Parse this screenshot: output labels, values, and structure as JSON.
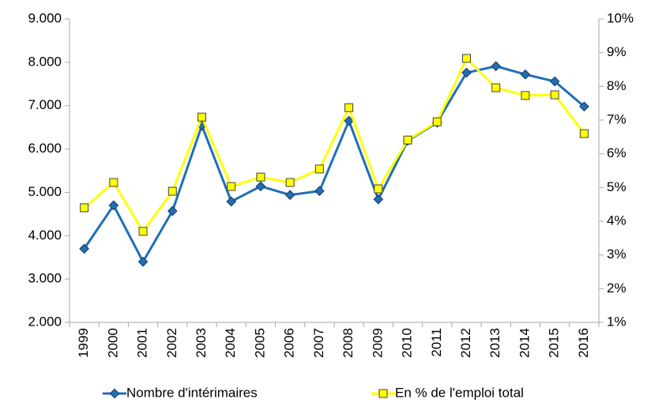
{
  "chart_data": {
    "type": "line",
    "categories": [
      "1999",
      "2000",
      "2001",
      "2002",
      "2003",
      "2004",
      "2005",
      "2006",
      "2007",
      "2008",
      "2009",
      "2010",
      "2011",
      "2012",
      "2013",
      "2014",
      "2015",
      "2016"
    ],
    "series": [
      {
        "name": "Nombre d'intérimaires",
        "color": "#1f6fb5",
        "values": [
          3700,
          4700,
          3400,
          4570,
          6540,
          4790,
          5140,
          4940,
          5030,
          6650,
          4840,
          6190,
          6610,
          7760,
          7910,
          7720,
          7560,
          6980
        ]
      },
      {
        "name": "En % de l'emploi total",
        "color": "#ffff00",
        "axis": "y2",
        "values": [
          4.4,
          5.15,
          3.7,
          4.89,
          7.09,
          5.03,
          5.31,
          5.15,
          5.55,
          7.37,
          4.96,
          6.41,
          6.95,
          8.83,
          7.96,
          7.73,
          7.75,
          6.6
        ]
      }
    ],
    "ylim": [
      2000,
      9000
    ],
    "yticks": [
      {
        "value": 2000,
        "label": "2.000"
      },
      {
        "value": 3000,
        "label": "3.000"
      },
      {
        "value": 4000,
        "label": "4.000"
      },
      {
        "value": 5000,
        "label": "5.000"
      },
      {
        "value": 6000,
        "label": "6.000"
      },
      {
        "value": 7000,
        "label": "7.000"
      },
      {
        "value": 8000,
        "label": "8.000"
      },
      {
        "value": 9000,
        "label": "9.000"
      }
    ],
    "y2lim": [
      1,
      10
    ],
    "y2ticks": [
      {
        "value": 1,
        "label": "1%"
      },
      {
        "value": 2,
        "label": "2%"
      },
      {
        "value": 3,
        "label": "3%"
      },
      {
        "value": 4,
        "label": "4%"
      },
      {
        "value": 5,
        "label": "5%"
      },
      {
        "value": 6,
        "label": "6%"
      },
      {
        "value": 7,
        "label": "7%"
      },
      {
        "value": 8,
        "label": "8%"
      },
      {
        "value": 9,
        "label": "9%"
      },
      {
        "value": 10,
        "label": "10%"
      }
    ],
    "grid": false,
    "legend": "bottom"
  }
}
